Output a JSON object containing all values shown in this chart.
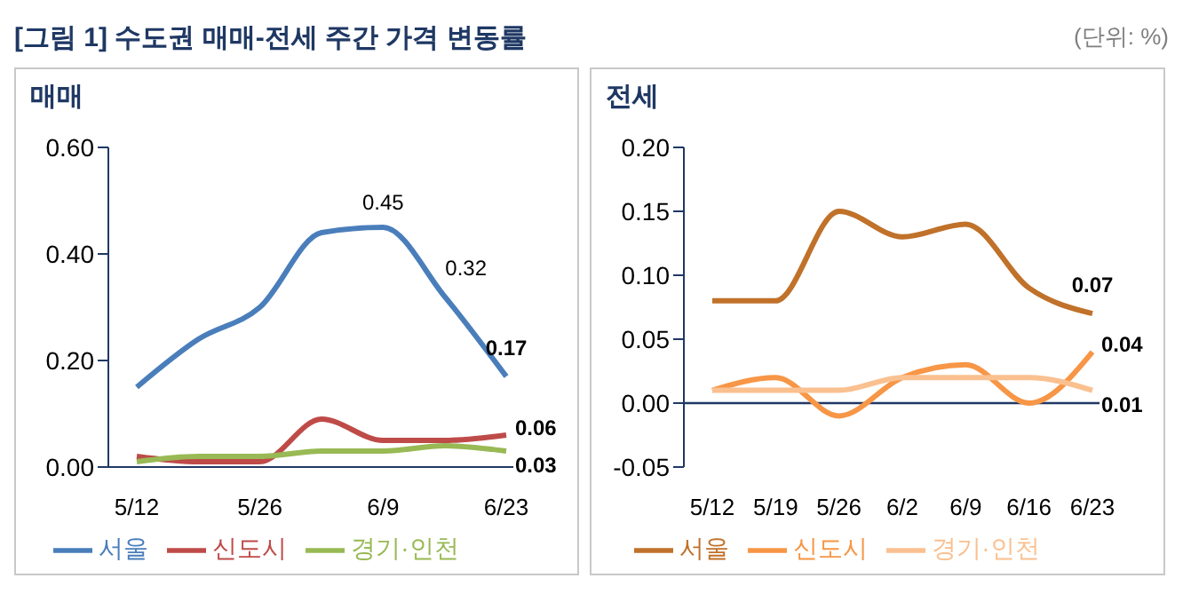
{
  "chart_data": [
    {
      "type": "line",
      "title": "[그림 1] 수도권 매매-전세 주간 가격 변동률",
      "subtitle": "매매",
      "categories": [
        "5/12",
        null,
        "5/26",
        null,
        "6/9",
        null,
        "6/23"
      ],
      "series": [
        {
          "name": "서울",
          "color": "#4a7ebb",
          "values": [
            0.15,
            0.24,
            0.3,
            0.44,
            0.45,
            0.32,
            0.17
          ],
          "value_labels": [
            null,
            null,
            null,
            null,
            "0.45",
            "0.32",
            "0.17"
          ]
        },
        {
          "name": "신도시",
          "color": "#be4b48",
          "values": [
            0.02,
            0.01,
            0.01,
            0.09,
            0.05,
            0.05,
            0.06
          ],
          "value_labels": [
            null,
            null,
            null,
            null,
            null,
            null,
            "0.06"
          ]
        },
        {
          "name": "경기·인천",
          "color": "#98b954",
          "values": [
            0.01,
            0.02,
            0.02,
            0.03,
            0.03,
            0.04,
            0.03
          ],
          "value_labels": [
            null,
            null,
            null,
            null,
            null,
            null,
            "0.03"
          ]
        }
      ],
      "ylim": [
        0,
        0.6
      ],
      "yticks": [
        {
          "value": 0,
          "label": "0.00"
        },
        {
          "value": 0.2,
          "label": "0.20"
        },
        {
          "value": 0.4,
          "label": "0.40"
        },
        {
          "value": 0.6,
          "label": "0.60"
        }
      ],
      "grid": false,
      "legend": "bottom",
      "marker": "none",
      "line_style": "solid"
    },
    {
      "type": "line",
      "subtitle": "전세",
      "annotations": [
        "(단위: %)"
      ],
      "categories": [
        "5/12",
        "5/19",
        "5/26",
        "6/2",
        "6/9",
        "6/16",
        "6/23"
      ],
      "series": [
        {
          "name": "서울",
          "color": "#c0712a",
          "values": [
            0.08,
            0.08,
            0.15,
            0.13,
            0.14,
            0.09,
            0.07
          ],
          "value_labels": [
            null,
            null,
            null,
            null,
            null,
            null,
            "0.07"
          ]
        },
        {
          "name": "신도시",
          "color": "#f79646",
          "values": [
            0.01,
            0.02,
            -0.01,
            0.02,
            0.03,
            0.0,
            0.04
          ],
          "value_labels": [
            null,
            null,
            null,
            null,
            null,
            null,
            "0.04"
          ]
        },
        {
          "name": "경기·인천",
          "color": "#fac090",
          "values": [
            0.01,
            0.01,
            0.01,
            0.02,
            0.02,
            0.02,
            0.01
          ],
          "value_labels": [
            null,
            null,
            null,
            null,
            null,
            null,
            "0.01"
          ]
        }
      ],
      "ylim": [
        -0.05,
        0.2
      ],
      "yticks": [
        {
          "value": -0.05,
          "label": "-0.05"
        },
        {
          "value": 0,
          "label": "0.00"
        },
        {
          "value": 0.05,
          "label": "0.05"
        },
        {
          "value": 0.1,
          "label": "0.10"
        },
        {
          "value": 0.15,
          "label": "0.15"
        },
        {
          "value": 0.2,
          "label": "0.20"
        }
      ],
      "ref_lines": [
        {
          "axis": "y",
          "value": 0,
          "color": "#1f3864"
        }
      ],
      "grid": false,
      "legend": "bottom",
      "marker": "none",
      "line_style": "solid"
    }
  ]
}
